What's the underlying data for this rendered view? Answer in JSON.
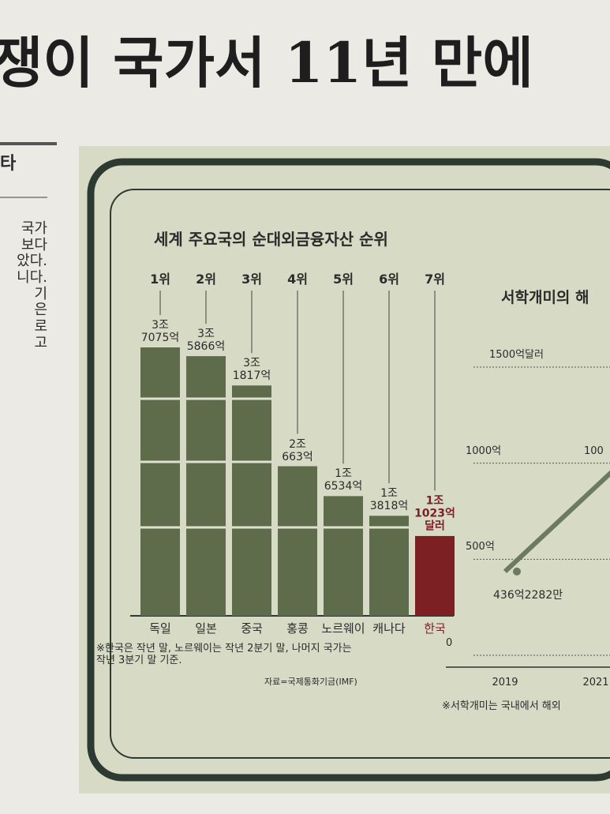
{
  "headline": "쟁이 국가서 11년 만에",
  "side_column": {
    "heading": "타",
    "lines": [
      "국가",
      "보다",
      "았다.",
      "니다.",
      "기",
      "은",
      "로",
      "고"
    ]
  },
  "chart_data": [
    {
      "type": "bar",
      "title": "세계 주요국의 순대외금융자산 순위",
      "categories": [
        "독일",
        "일본",
        "중국",
        "홍콩",
        "노르웨이",
        "캐나다",
        "한국"
      ],
      "ranks": [
        "1위",
        "2위",
        "3위",
        "4위",
        "5위",
        "6위",
        "7위"
      ],
      "values": [
        37075,
        35866,
        31817,
        20663,
        16534,
        13818,
        11023
      ],
      "value_labels": [
        "3조\n7075억",
        "3조\n5866억",
        "3조\n1817억",
        "2조\n663억",
        "1조\n6534억",
        "1조\n3818억",
        "1조\n1023억\n달러"
      ],
      "colors": [
        "#5e6c4c",
        "#5e6c4c",
        "#5e6c4c",
        "#5e6c4c",
        "#5e6c4c",
        "#5e6c4c",
        "#7c2024"
      ],
      "note": "※한국은 작년 말, 노르웨이는 작년 2분기 말, 나머지 국가는\n작년 3분기 말 기준.",
      "source": "자료=국제통화기금(IMF)"
    },
    {
      "type": "line",
      "title": "서학개미의 해",
      "x": [
        "2019",
        "2021"
      ],
      "ylim": [
        0,
        1500
      ],
      "yticks": [
        0,
        {
          "value": 500,
          "label": "500억"
        },
        {
          "value": 1000,
          "label": "1000억"
        },
        {
          "value": 1500,
          "label": "1500억달러"
        }
      ],
      "series": [
        {
          "color": "#6e7a60",
          "values": [
            436.2282,
            null
          ],
          "value_labels": [
            "436억2282만",
            null
          ]
        }
      ],
      "annotation": "100",
      "note": "※서학개미는 국내에서 해외"
    }
  ]
}
